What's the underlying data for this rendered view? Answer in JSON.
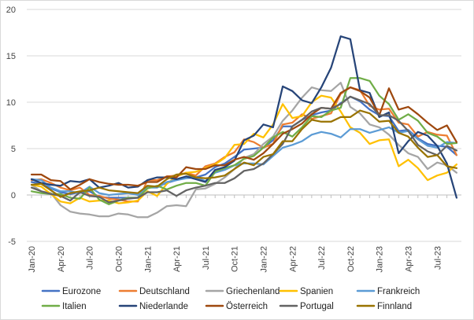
{
  "chart_data": {
    "type": "line",
    "title": "",
    "xlabel": "",
    "ylabel": "",
    "ylim": [
      -5,
      20
    ],
    "yticks": [
      -5,
      0,
      5,
      10,
      15,
      20
    ],
    "grid": "horizontal",
    "legend_position": "bottom",
    "x": [
      "Jan-20",
      "Feb-20",
      "Mar-20",
      "Apr-20",
      "May-20",
      "Jun-20",
      "Jul-20",
      "Aug-20",
      "Sep-20",
      "Oct-20",
      "Nov-20",
      "Dec-20",
      "Jan-21",
      "Feb-21",
      "Mar-21",
      "Apr-21",
      "May-21",
      "Jun-21",
      "Jul-21",
      "Aug-21",
      "Sep-21",
      "Oct-21",
      "Nov-21",
      "Dec-21",
      "Jan-22",
      "Feb-22",
      "Mar-22",
      "Apr-22",
      "May-22",
      "Jun-22",
      "Jul-22",
      "Aug-22",
      "Sep-22",
      "Oct-22",
      "Nov-22",
      "Dec-22",
      "Jan-23",
      "Feb-23",
      "Mar-23",
      "Apr-23",
      "May-23",
      "Jun-23",
      "Jul-23",
      "Aug-23",
      "Sep-23"
    ],
    "x_tick_labels": [
      "Jan-20",
      "Apr-20",
      "Jul-20",
      "Oct-20",
      "Jan-21",
      "Apr-21",
      "Jul-21",
      "Oct-21",
      "Jan-22",
      "Apr-22",
      "Jul-22",
      "Oct-22",
      "Jan-23",
      "Apr-23",
      "Jul-23"
    ],
    "series": [
      {
        "name": "Eurozone",
        "color": "#4472c4",
        "values": [
          1.4,
          1.2,
          0.7,
          0.3,
          0.1,
          0.3,
          0.4,
          -0.2,
          -0.3,
          -0.3,
          -0.3,
          -0.3,
          0.9,
          0.9,
          1.3,
          1.6,
          2.0,
          1.9,
          2.2,
          3.0,
          3.4,
          4.1,
          4.9,
          5.0,
          5.1,
          5.9,
          7.4,
          7.4,
          8.1,
          8.6,
          8.9,
          9.1,
          9.9,
          10.6,
          10.1,
          9.2,
          8.6,
          8.5,
          6.9,
          7.0,
          6.1,
          5.5,
          5.3,
          5.2,
          4.3
        ]
      },
      {
        "name": "Deutschland",
        "color": "#ed7d31",
        "values": [
          1.6,
          1.7,
          1.3,
          0.8,
          0.5,
          0.8,
          0.0,
          -0.1,
          -0.4,
          -0.5,
          -0.7,
          -0.7,
          1.6,
          1.6,
          2.0,
          2.1,
          2.4,
          2.1,
          3.1,
          3.4,
          4.1,
          4.6,
          6.0,
          5.7,
          5.1,
          5.5,
          7.6,
          7.8,
          8.7,
          8.2,
          8.5,
          8.8,
          10.9,
          11.6,
          11.3,
          9.6,
          9.2,
          9.3,
          7.8,
          7.6,
          6.3,
          6.8,
          6.5,
          6.4,
          4.3
        ]
      },
      {
        "name": "Griechenland",
        "color": "#a5a5a5",
        "values": [
          1.1,
          0.4,
          0.2,
          -1.1,
          -1.8,
          -2.0,
          -2.1,
          -2.3,
          -2.3,
          -2.0,
          -2.1,
          -2.4,
          -2.4,
          -1.9,
          -1.2,
          -1.1,
          -1.2,
          0.6,
          0.7,
          1.2,
          1.9,
          2.8,
          4.0,
          4.4,
          5.5,
          6.3,
          8.0,
          9.1,
          10.5,
          11.6,
          11.3,
          11.2,
          12.1,
          9.5,
          8.8,
          7.6,
          7.3,
          6.5,
          5.4,
          4.5,
          4.1,
          2.8,
          3.5,
          3.2,
          2.4
        ]
      },
      {
        "name": "Spanien",
        "color": "#ffc000",
        "values": [
          1.1,
          0.9,
          0.1,
          -0.7,
          -0.9,
          -0.3,
          -0.7,
          -0.6,
          -0.6,
          -0.9,
          -0.8,
          -0.6,
          0.4,
          -0.1,
          1.2,
          2.0,
          2.4,
          2.5,
          2.9,
          3.3,
          4.0,
          5.4,
          5.5,
          6.6,
          6.2,
          7.6,
          9.8,
          8.3,
          8.5,
          10.0,
          10.7,
          10.5,
          9.0,
          7.3,
          6.7,
          5.5,
          5.9,
          6.0,
          3.1,
          3.8,
          2.9,
          1.6,
          2.1,
          2.4,
          3.3
        ]
      },
      {
        "name": "Frankreich",
        "color": "#5b9bd5",
        "values": [
          1.7,
          1.6,
          0.8,
          0.4,
          0.4,
          0.2,
          0.9,
          0.2,
          0.0,
          0.1,
          0.2,
          0.0,
          0.8,
          0.8,
          1.4,
          1.6,
          1.8,
          1.9,
          1.5,
          2.4,
          2.7,
          3.2,
          3.4,
          3.4,
          3.3,
          4.2,
          5.1,
          5.4,
          5.8,
          6.5,
          6.8,
          6.6,
          6.2,
          7.1,
          7.1,
          6.7,
          7.0,
          7.3,
          6.7,
          6.9,
          6.0,
          5.3,
          5.1,
          5.7,
          5.6
        ]
      },
      {
        "name": "Italien",
        "color": "#70ad47",
        "values": [
          0.4,
          0.2,
          0.1,
          0.1,
          -0.3,
          -0.4,
          0.8,
          -0.5,
          -1.0,
          -0.6,
          -0.3,
          -0.3,
          0.7,
          1.0,
          0.6,
          1.0,
          1.3,
          1.3,
          1.0,
          2.5,
          2.9,
          3.2,
          3.9,
          4.2,
          5.1,
          6.2,
          6.8,
          6.3,
          7.3,
          8.5,
          8.4,
          9.1,
          9.4,
          12.6,
          12.6,
          12.3,
          10.7,
          9.8,
          8.1,
          8.7,
          8.0,
          6.7,
          6.3,
          5.5,
          5.6
        ]
      },
      {
        "name": "Niederlande",
        "color": "#264478",
        "values": [
          1.7,
          1.3,
          1.1,
          1.0,
          1.5,
          1.4,
          1.7,
          0.8,
          1.0,
          1.3,
          0.8,
          0.9,
          1.6,
          1.9,
          1.9,
          1.7,
          2.0,
          1.7,
          1.4,
          2.7,
          3.0,
          3.7,
          5.9,
          6.4,
          7.6,
          7.3,
          11.7,
          11.2,
          10.2,
          9.9,
          11.6,
          13.7,
          17.1,
          16.8,
          11.3,
          11.0,
          8.4,
          8.9,
          4.5,
          5.8,
          6.8,
          6.4,
          5.3,
          3.4,
          -0.3
        ]
      },
      {
        "name": "Österreich",
        "color": "#9e480e",
        "values": [
          2.2,
          2.2,
          1.6,
          1.5,
          0.6,
          1.1,
          1.7,
          1.4,
          1.2,
          1.1,
          1.1,
          1.0,
          1.4,
          1.4,
          2.0,
          1.9,
          3.0,
          2.8,
          2.8,
          3.2,
          3.2,
          3.8,
          4.1,
          3.8,
          4.5,
          5.5,
          6.6,
          7.1,
          7.7,
          8.7,
          9.4,
          9.3,
          11.0,
          11.6,
          11.2,
          10.5,
          8.6,
          11.5,
          9.2,
          9.5,
          8.7,
          7.8,
          7.0,
          7.5,
          5.7
        ]
      },
      {
        "name": "Portugal",
        "color": "#636363",
        "values": [
          0.8,
          0.4,
          0.1,
          -0.1,
          -0.6,
          0.3,
          -0.1,
          -0.2,
          -0.8,
          -0.6,
          -0.4,
          -0.3,
          0.3,
          0.3,
          0.5,
          -0.1,
          0.5,
          0.8,
          1.0,
          1.3,
          1.3,
          1.8,
          2.6,
          2.8,
          3.4,
          4.4,
          5.5,
          7.4,
          8.1,
          9.0,
          9.4,
          9.3,
          9.8,
          10.6,
          10.2,
          9.8,
          8.6,
          8.6,
          8.0,
          6.9,
          5.4,
          4.7,
          4.3,
          5.3,
          4.8
        ]
      },
      {
        "name": "Finnland",
        "color": "#997300",
        "values": [
          1.1,
          1.2,
          0.5,
          -0.2,
          0.2,
          0.4,
          0.5,
          0.8,
          0.5,
          0.4,
          0.3,
          0.2,
          1.0,
          0.9,
          1.7,
          2.2,
          2.3,
          1.9,
          1.8,
          1.9,
          2.1,
          2.8,
          3.5,
          3.2,
          4.1,
          4.4,
          5.8,
          5.8,
          7.1,
          8.1,
          7.9,
          7.9,
          8.4,
          8.4,
          9.1,
          8.8,
          7.9,
          8.0,
          6.7,
          6.3,
          5.1,
          4.1,
          4.3,
          3.1,
          2.9
        ]
      }
    ]
  }
}
